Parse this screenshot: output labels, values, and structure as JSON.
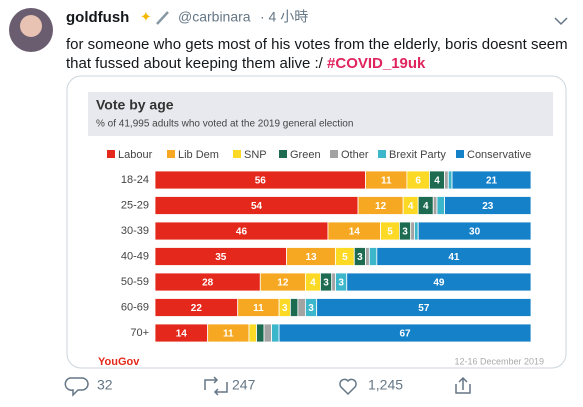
{
  "tweet": {
    "name": "goldfush",
    "handle": "@carbinara",
    "time": "· 4 小時",
    "text": [
      "for someone who gets most of his votes from the elderly, boris doesnt seem",
      "that fussed about keeping them alive :/"
    ],
    "hashtag": "#COVID_19uk",
    "replies": "32",
    "retweets": "247",
    "likes": "1,245"
  },
  "chart_data": {
    "type": "stacked-bar-horizontal",
    "title": "Vote by age",
    "subtitle": "% of 41,995 adults who voted at the 2019 general election",
    "source": "YouGov",
    "date": "12-16 December 2019",
    "categories": [
      "18-24",
      "25-29",
      "30-39",
      "40-49",
      "50-59",
      "60-69",
      "70+"
    ],
    "series": [
      {
        "name": "Labour",
        "color": "#e4281b",
        "values": [
          56,
          54,
          46,
          35,
          28,
          22,
          14
        ]
      },
      {
        "name": "Lib Dem",
        "color": "#f7a823",
        "values": [
          11,
          12,
          14,
          13,
          12,
          11,
          11
        ]
      },
      {
        "name": "SNP",
        "color": "#fbd924",
        "values": [
          6,
          4,
          5,
          5,
          4,
          3,
          2
        ]
      },
      {
        "name": "Green",
        "color": "#1d6b50",
        "values": [
          4,
          4,
          3,
          3,
          3,
          2,
          2
        ]
      },
      {
        "name": "Other",
        "color": "#a3a3a3",
        "values": [
          1,
          1,
          1,
          1,
          1,
          2,
          2
        ]
      },
      {
        "name": "Brexit Party",
        "color": "#3bb6cb",
        "values": [
          1,
          2,
          1,
          2,
          3,
          3,
          2
        ]
      },
      {
        "name": "Conservative",
        "color": "#1581c9",
        "values": [
          21,
          23,
          30,
          41,
          49,
          57,
          67
        ]
      }
    ],
    "xlim": [
      0,
      100
    ]
  }
}
